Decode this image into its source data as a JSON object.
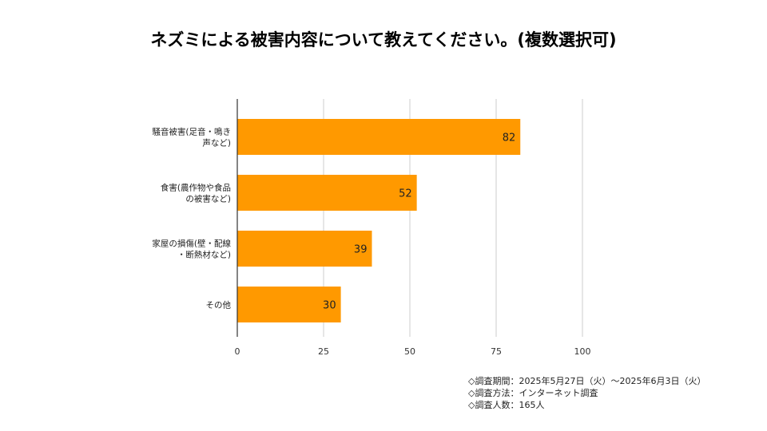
{
  "chart_data": {
    "type": "bar",
    "orientation": "horizontal",
    "title": "ネズミによる被害内容について教えてください。(複数選択可)",
    "categories": [
      [
        "騒音被害(足音・鳴き",
        "声など)"
      ],
      [
        "食害(農作物や食品",
        "の被害など)"
      ],
      [
        "家屋の損傷(壁・配線",
        "・断熱材など)"
      ],
      [
        "その他"
      ]
    ],
    "values": [
      82,
      52,
      39,
      30
    ],
    "value_labels": [
      "82",
      "52",
      "39",
      "30"
    ],
    "xlim": [
      0,
      100
    ],
    "x_ticks": [
      "0",
      "25",
      "50",
      "75",
      "100"
    ],
    "x_tick_values": [
      0,
      25,
      50,
      75,
      100
    ],
    "grid": true,
    "bar_color": "#ff9900",
    "grid_color": "#cccccc",
    "axis_color": "#333333"
  },
  "notes": [
    "◇調査期間：2025年5月27日（火）～2025年6月3日（火）",
    "◇調査方法：インターネット調査",
    "◇調査人数：165人"
  ]
}
